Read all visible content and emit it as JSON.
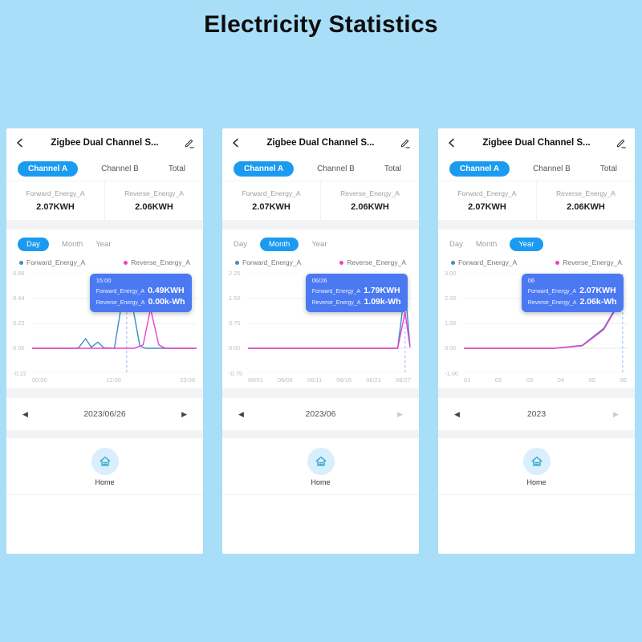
{
  "page": {
    "title": "Electricity Statistics"
  },
  "icons": {
    "prev_arrow": "◀",
    "next_arrow": "▶"
  },
  "colors": {
    "background": "#A8DEF8",
    "accent_blue": "#1B9BF0",
    "tooltip_blue": "#4A79F2",
    "line_blue": "#3C8DC5",
    "line_pink": "#EE3FC8"
  },
  "phones": [
    {
      "header_title": "Zigbee Dual Channel S...",
      "channel_tabs": [
        {
          "label": "Channel A",
          "active": true
        },
        {
          "label": "Channel B",
          "active": false
        },
        {
          "label": "Total",
          "active": false
        }
      ],
      "stats": [
        {
          "label": "Forward_Energy_A",
          "value": "2.07KWH"
        },
        {
          "label": "Reverse_Energy_A",
          "value": "2.06KWH"
        }
      ],
      "period_tabs": [
        {
          "label": "Day",
          "active": true
        },
        {
          "label": "Month",
          "active": false
        },
        {
          "label": "Year",
          "active": false
        }
      ],
      "legend": [
        {
          "label": "Forward_Energy_A"
        },
        {
          "label": "Reverse_Energy_A"
        }
      ],
      "tooltip": {
        "time": "15:00",
        "rows": [
          {
            "label": "Forward_Energy_A",
            "value": "0.49KWH"
          },
          {
            "label": "Reverse_Energy_A",
            "value": "0.00k-Wh"
          }
        ]
      },
      "y_ticks": [
        "0.66",
        "0.44",
        "0.22",
        "0.00",
        "-0.22"
      ],
      "x_ticks": [
        "00:00",
        "12:00",
        "23:00"
      ],
      "date_nav": {
        "label": "2023/06/26",
        "next_enabled": true
      },
      "home_label": "Home",
      "chart": {
        "type": "line",
        "ylim": [
          -0.22,
          0.66
        ],
        "grid": [
          0.66,
          0.44,
          0.22,
          0,
          -0.22
        ],
        "marker_x": 0.575,
        "series": [
          {
            "name": "Forward_Energy_A",
            "color": "#3C8DC5",
            "points": [
              [
                0,
                0
              ],
              [
                0.28,
                0
              ],
              [
                0.325,
                0.085
              ],
              [
                0.36,
                0.01
              ],
              [
                0.4,
                0.055
              ],
              [
                0.435,
                0.005
              ],
              [
                0.5,
                0
              ],
              [
                0.545,
                0.4
              ],
              [
                0.575,
                0.49
              ],
              [
                0.61,
                0.38
              ],
              [
                0.655,
                0.02
              ],
              [
                0.69,
                0
              ],
              [
                1,
                0
              ]
            ]
          },
          {
            "name": "Reverse_Energy_A",
            "color": "#EE3FC8",
            "points": [
              [
                0,
                0
              ],
              [
                0.62,
                0
              ],
              [
                0.675,
                0.03
              ],
              [
                0.72,
                0.35
              ],
              [
                0.77,
                0.03
              ],
              [
                0.81,
                0
              ],
              [
                1,
                0
              ]
            ]
          }
        ]
      }
    },
    {
      "header_title": "Zigbee Dual Channel S...",
      "channel_tabs": [
        {
          "label": "Channel A",
          "active": true
        },
        {
          "label": "Channel B",
          "active": false
        },
        {
          "label": "Total",
          "active": false
        }
      ],
      "stats": [
        {
          "label": "Forward_Energy_A",
          "value": "2.07KWH"
        },
        {
          "label": "Reverse_Energy_A",
          "value": "2.06KWH"
        }
      ],
      "period_tabs": [
        {
          "label": "Day",
          "active": false
        },
        {
          "label": "Month",
          "active": true
        },
        {
          "label": "Year",
          "active": false
        }
      ],
      "legend": [
        {
          "label": "Forward_Energy_A"
        },
        {
          "label": "Reverse_Energy_A"
        }
      ],
      "tooltip": {
        "time": "06/26",
        "rows": [
          {
            "label": "Forward_Energy_A",
            "value": "1.79KWH"
          },
          {
            "label": "Reverse_Energy_A",
            "value": "1.09k-Wh"
          }
        ]
      },
      "y_ticks": [
        "2.25",
        "1.50",
        "0.75",
        "0.00",
        "-0.75"
      ],
      "x_ticks": [
        "06/01",
        "06/06",
        "06/11",
        "06/16",
        "06/21",
        "06/27"
      ],
      "date_nav": {
        "label": "2023/06",
        "next_enabled": false
      },
      "home_label": "Home",
      "chart": {
        "type": "line",
        "ylim": [
          -0.75,
          2.25
        ],
        "grid": [
          2.25,
          1.5,
          0.75,
          0,
          -0.75
        ],
        "marker_x": 0.955,
        "series": [
          {
            "name": "Forward_Energy_A",
            "color": "#3C8DC5",
            "points": [
              [
                0,
                0
              ],
              [
                0.91,
                0
              ],
              [
                0.955,
                1.79
              ],
              [
                0.985,
                0.05
              ]
            ]
          },
          {
            "name": "Reverse_Energy_A",
            "color": "#EE3FC8",
            "points": [
              [
                0,
                0
              ],
              [
                0.91,
                0
              ],
              [
                0.955,
                1.09
              ],
              [
                0.985,
                0.03
              ]
            ]
          }
        ]
      }
    },
    {
      "header_title": "Zigbee Dual Channel S...",
      "channel_tabs": [
        {
          "label": "Channel A",
          "active": true
        },
        {
          "label": "Channel B",
          "active": false
        },
        {
          "label": "Total",
          "active": false
        }
      ],
      "stats": [
        {
          "label": "Forward_Energy_A",
          "value": "2.07KWH"
        },
        {
          "label": "Reverse_Energy_A",
          "value": "2.06KWH"
        }
      ],
      "period_tabs": [
        {
          "label": "Day",
          "active": false
        },
        {
          "label": "Month",
          "active": false
        },
        {
          "label": "Year",
          "active": true
        }
      ],
      "legend": [
        {
          "label": "Forward_Energy_A"
        },
        {
          "label": "Reverse_Energy_A"
        }
      ],
      "tooltip": {
        "time": "06",
        "rows": [
          {
            "label": "Forward_Energy_A",
            "value": "2.07KWH"
          },
          {
            "label": "Reverse_Energy_A",
            "value": "2.06k-Wh"
          }
        ]
      },
      "y_ticks": [
        "3.00",
        "2.00",
        "1.00",
        "0.00",
        "-1.00"
      ],
      "x_ticks": [
        "01",
        "02",
        "03",
        "04",
        "05",
        "06"
      ],
      "date_nav": {
        "label": "2023",
        "next_enabled": false
      },
      "home_label": "Home",
      "chart": {
        "type": "line",
        "ylim": [
          -1,
          3
        ],
        "grid": [
          3,
          2,
          1,
          0,
          -1
        ],
        "marker_x": 0.965,
        "series": [
          {
            "name": "Forward_Energy_A",
            "color": "#3C8DC5",
            "points": [
              [
                0,
                0
              ],
              [
                0.55,
                0
              ],
              [
                0.72,
                0.12
              ],
              [
                0.85,
                0.8
              ],
              [
                0.93,
                1.7
              ],
              [
                0.965,
                2.07
              ]
            ]
          },
          {
            "name": "Reverse_Energy_A",
            "color": "#EE3FC8",
            "points": [
              [
                0,
                0
              ],
              [
                0.55,
                0
              ],
              [
                0.72,
                0.1
              ],
              [
                0.85,
                0.75
              ],
              [
                0.93,
                1.65
              ],
              [
                0.965,
                2.06
              ]
            ]
          }
        ]
      }
    }
  ]
}
